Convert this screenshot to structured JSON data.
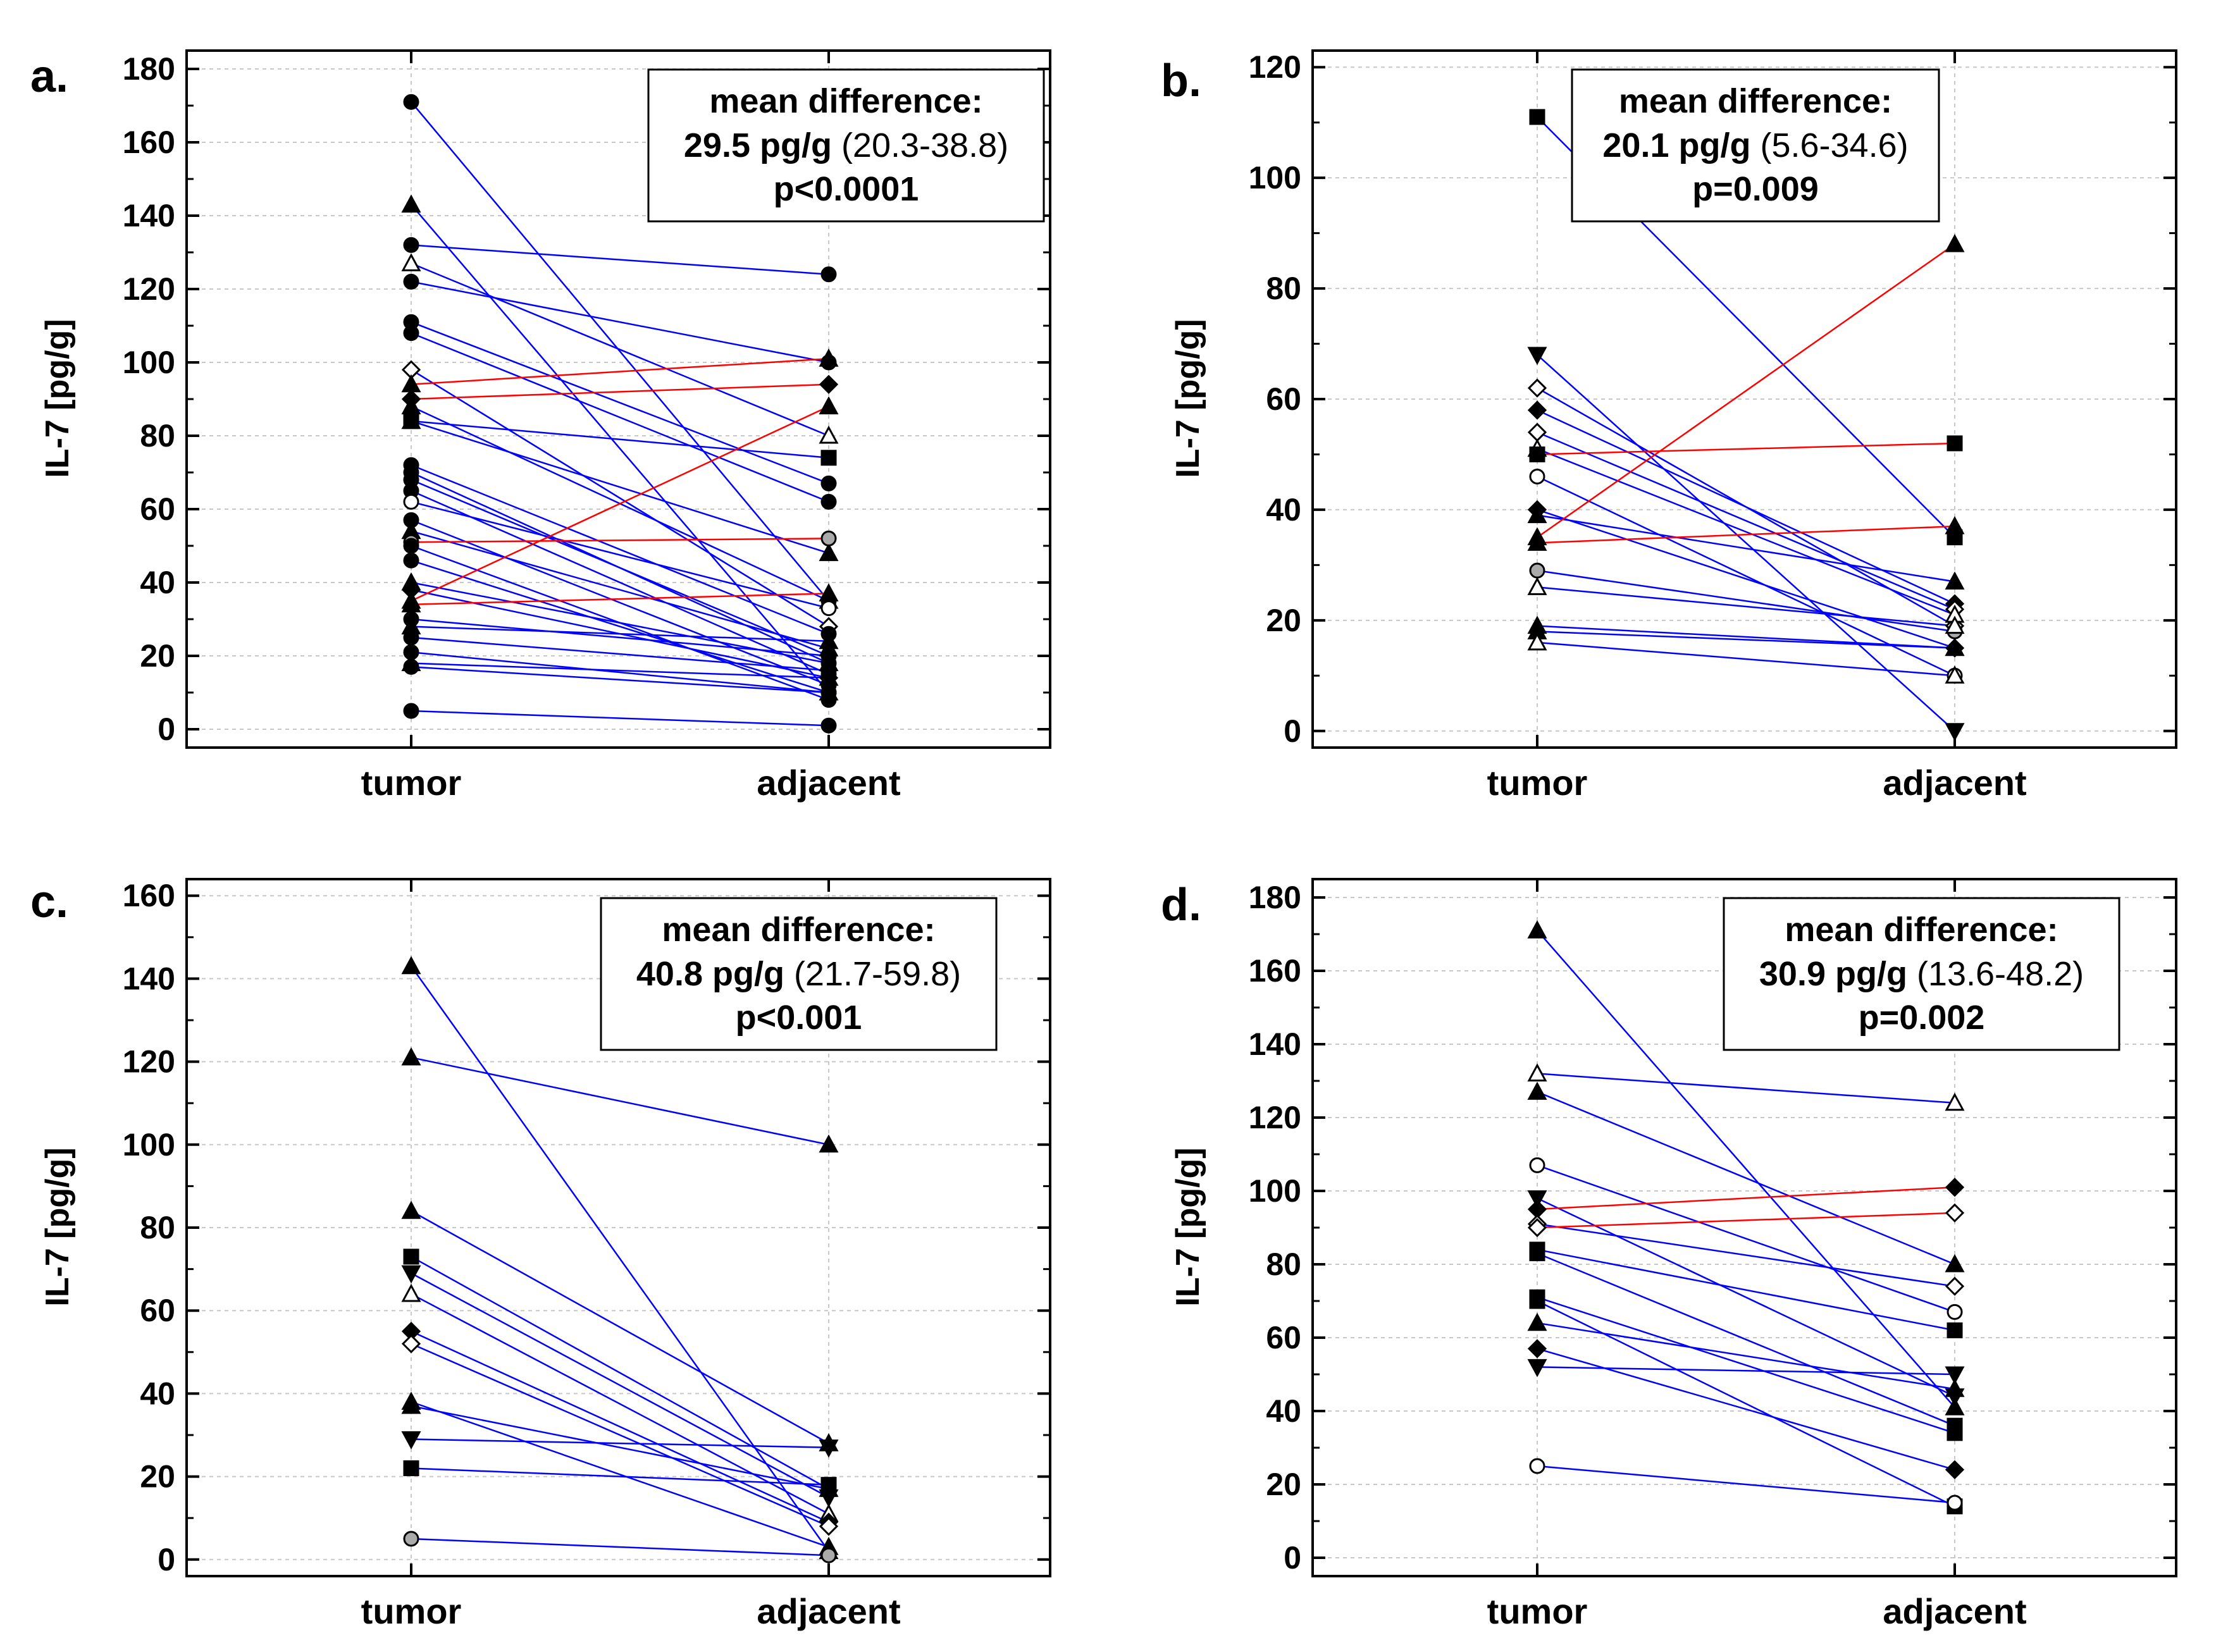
{
  "colors": {
    "decrease_line": "#0000ff",
    "increase_line": "#ff0000",
    "axis": "#000000",
    "grid": "#c8c8c8",
    "marker_black": "#000000",
    "marker_gray": "#aaaaaa"
  },
  "chart_data": [
    {
      "type": "line",
      "letter": "a.",
      "ylabel": "IL-7 [pg/g]",
      "categories": [
        "tumor",
        "adjacent"
      ],
      "ylim": [
        -5,
        185
      ],
      "yticks": [
        0,
        20,
        40,
        60,
        80,
        100,
        120,
        140,
        160,
        180
      ],
      "stats": {
        "title": "mean difference:",
        "value": "29.5 pg/g",
        "ci": "(20.3-38.8)",
        "p": "p<0.0001"
      },
      "pairs": [
        {
          "tumor": 171,
          "adjacent": 35,
          "marker": "circle-filled"
        },
        {
          "tumor": 143,
          "adjacent": 10,
          "marker": "triangle-filled"
        },
        {
          "tumor": 132,
          "adjacent": 124,
          "marker": "circle-filled"
        },
        {
          "tumor": 127,
          "adjacent": 80,
          "marker": "triangle-open"
        },
        {
          "tumor": 122,
          "adjacent": 100,
          "marker": "circle-filled"
        },
        {
          "tumor": 111,
          "adjacent": 67,
          "marker": "circle-filled"
        },
        {
          "tumor": 108,
          "adjacent": 62,
          "marker": "circle-filled"
        },
        {
          "tumor": 98,
          "adjacent": 28,
          "marker": "diamond-open"
        },
        {
          "tumor": 94,
          "adjacent": 101,
          "marker": "triangle-filled"
        },
        {
          "tumor": 90,
          "adjacent": 94,
          "marker": "diamond-filled"
        },
        {
          "tumor": 88,
          "adjacent": 35,
          "marker": "triangle-filled"
        },
        {
          "tumor": 84,
          "adjacent": 74,
          "marker": "square-filled"
        },
        {
          "tumor": 84,
          "adjacent": 48,
          "marker": "triangle-filled"
        },
        {
          "tumor": 72,
          "adjacent": 26,
          "marker": "circle-filled"
        },
        {
          "tumor": 70,
          "adjacent": 18,
          "marker": "circle-filled"
        },
        {
          "tumor": 68,
          "adjacent": 20,
          "marker": "circle-filled"
        },
        {
          "tumor": 65,
          "adjacent": 15,
          "marker": "circle-filled"
        },
        {
          "tumor": 62,
          "adjacent": 33,
          "marker": "circle-open"
        },
        {
          "tumor": 57,
          "adjacent": 12,
          "marker": "circle-filled"
        },
        {
          "tumor": 54,
          "adjacent": 22,
          "marker": "triangle-filled"
        },
        {
          "tumor": 51,
          "adjacent": 52,
          "marker": "circle-gray"
        },
        {
          "tumor": 50,
          "adjacent": 8,
          "marker": "circle-filled"
        },
        {
          "tumor": 46,
          "adjacent": 10,
          "marker": "circle-filled"
        },
        {
          "tumor": 40,
          "adjacent": 18,
          "marker": "triangle-filled"
        },
        {
          "tumor": 38,
          "adjacent": 14,
          "marker": "diamond-filled"
        },
        {
          "tumor": 35,
          "adjacent": 88,
          "marker": "triangle-filled"
        },
        {
          "tumor": 34,
          "adjacent": 37,
          "marker": "triangle-filled"
        },
        {
          "tumor": 30,
          "adjacent": 20,
          "marker": "circle-filled"
        },
        {
          "tumor": 28,
          "adjacent": 24,
          "marker": "triangle-filled"
        },
        {
          "tumor": 25,
          "adjacent": 16,
          "marker": "circle-filled"
        },
        {
          "tumor": 21,
          "adjacent": 10,
          "marker": "circle-filled"
        },
        {
          "tumor": 18,
          "adjacent": 14,
          "marker": "triangle-filled"
        },
        {
          "tumor": 17,
          "adjacent": 10,
          "marker": "circle-filled"
        },
        {
          "tumor": 5,
          "adjacent": 1,
          "marker": "circle-filled"
        }
      ]
    },
    {
      "type": "line",
      "letter": "b.",
      "ylabel": "IL-7 [pg/g]",
      "categories": [
        "tumor",
        "adjacent"
      ],
      "ylim": [
        -3,
        123
      ],
      "yticks": [
        0,
        20,
        40,
        60,
        80,
        100,
        120
      ],
      "stats": {
        "title": "mean difference:",
        "value": "20.1 pg/g",
        "ci": "(5.6-34.6)",
        "p": "p=0.009"
      },
      "pairs": [
        {
          "tumor": 111,
          "adjacent": 35,
          "marker": "square-filled"
        },
        {
          "tumor": 68,
          "adjacent": 0,
          "marker": "triangle-down-filled"
        },
        {
          "tumor": 62,
          "adjacent": 19,
          "marker": "diamond-open"
        },
        {
          "tumor": 58,
          "adjacent": 23,
          "marker": "diamond-filled"
        },
        {
          "tumor": 54,
          "adjacent": 22,
          "marker": "diamond-open"
        },
        {
          "tumor": 51,
          "adjacent": 21,
          "marker": "triangle-open"
        },
        {
          "tumor": 50,
          "adjacent": 52,
          "marker": "square-filled"
        },
        {
          "tumor": 46,
          "adjacent": 10,
          "marker": "circle-open"
        },
        {
          "tumor": 40,
          "adjacent": 15,
          "marker": "diamond-filled"
        },
        {
          "tumor": 39,
          "adjacent": 27,
          "marker": "triangle-filled"
        },
        {
          "tumor": 35,
          "adjacent": 88,
          "marker": "triangle-filled"
        },
        {
          "tumor": 34,
          "adjacent": 37,
          "marker": "triangle-filled"
        },
        {
          "tumor": 29,
          "adjacent": 18,
          "marker": "circle-gray"
        },
        {
          "tumor": 26,
          "adjacent": 19,
          "marker": "triangle-open"
        },
        {
          "tumor": 19,
          "adjacent": 15,
          "marker": "triangle-filled"
        },
        {
          "tumor": 18,
          "adjacent": 15,
          "marker": "triangle-filled"
        },
        {
          "tumor": 16,
          "adjacent": 10,
          "marker": "triangle-open"
        }
      ]
    },
    {
      "type": "line",
      "letter": "c.",
      "ylabel": "IL-7 [pg/g]",
      "categories": [
        "tumor",
        "adjacent"
      ],
      "ylim": [
        -4,
        164
      ],
      "yticks": [
        0,
        20,
        40,
        60,
        80,
        100,
        120,
        140,
        160
      ],
      "stats": {
        "title": "mean difference:",
        "value": "40.8 pg/g",
        "ci": "(21.7-59.8)",
        "p": "p<0.001"
      },
      "pairs": [
        {
          "tumor": 143,
          "adjacent": 2,
          "marker": "triangle-filled"
        },
        {
          "tumor": 121,
          "adjacent": 100,
          "marker": "triangle-filled"
        },
        {
          "tumor": 84,
          "adjacent": 28,
          "marker": "triangle-filled"
        },
        {
          "tumor": 73,
          "adjacent": 17,
          "marker": "square-filled"
        },
        {
          "tumor": 69,
          "adjacent": 15,
          "marker": "triangle-down-filled"
        },
        {
          "tumor": 64,
          "adjacent": 11,
          "marker": "triangle-open"
        },
        {
          "tumor": 55,
          "adjacent": 9,
          "marker": "diamond-filled"
        },
        {
          "tumor": 52,
          "adjacent": 8,
          "marker": "diamond-open"
        },
        {
          "tumor": 38,
          "adjacent": 3,
          "marker": "triangle-filled"
        },
        {
          "tumor": 37,
          "adjacent": 17,
          "marker": "triangle-filled"
        },
        {
          "tumor": 29,
          "adjacent": 27,
          "marker": "triangle-down-filled"
        },
        {
          "tumor": 22,
          "adjacent": 18,
          "marker": "square-filled"
        },
        {
          "tumor": 5,
          "adjacent": 1,
          "marker": "circle-gray"
        }
      ]
    },
    {
      "type": "line",
      "letter": "d.",
      "ylabel": "IL-7 [pg/g]",
      "categories": [
        "tumor",
        "adjacent"
      ],
      "ylim": [
        -5,
        185
      ],
      "yticks": [
        0,
        20,
        40,
        60,
        80,
        100,
        120,
        140,
        160,
        180
      ],
      "stats": {
        "title": "mean difference:",
        "value": "30.9 pg/g",
        "ci": "(13.6-48.2)",
        "p": "p=0.002"
      },
      "pairs": [
        {
          "tumor": 171,
          "adjacent": 41,
          "marker": "triangle-filled"
        },
        {
          "tumor": 132,
          "adjacent": 124,
          "marker": "triangle-open"
        },
        {
          "tumor": 127,
          "adjacent": 80,
          "marker": "triangle-filled"
        },
        {
          "tumor": 107,
          "adjacent": 67,
          "marker": "circle-open"
        },
        {
          "tumor": 98,
          "adjacent": 44,
          "marker": "triangle-down-filled"
        },
        {
          "tumor": 95,
          "adjacent": 101,
          "marker": "diamond-filled"
        },
        {
          "tumor": 91,
          "adjacent": 74,
          "marker": "diamond-open"
        },
        {
          "tumor": 90,
          "adjacent": 94,
          "marker": "diamond-open"
        },
        {
          "tumor": 84,
          "adjacent": 62,
          "marker": "square-filled"
        },
        {
          "tumor": 83,
          "adjacent": 36,
          "marker": "square-filled"
        },
        {
          "tumor": 71,
          "adjacent": 34,
          "marker": "square-filled"
        },
        {
          "tumor": 70,
          "adjacent": 14,
          "marker": "square-filled"
        },
        {
          "tumor": 64,
          "adjacent": 46,
          "marker": "triangle-filled"
        },
        {
          "tumor": 57,
          "adjacent": 24,
          "marker": "diamond-filled"
        },
        {
          "tumor": 52,
          "adjacent": 50,
          "marker": "triangle-down-filled"
        },
        {
          "tumor": 25,
          "adjacent": 15,
          "marker": "circle-open"
        }
      ]
    }
  ]
}
